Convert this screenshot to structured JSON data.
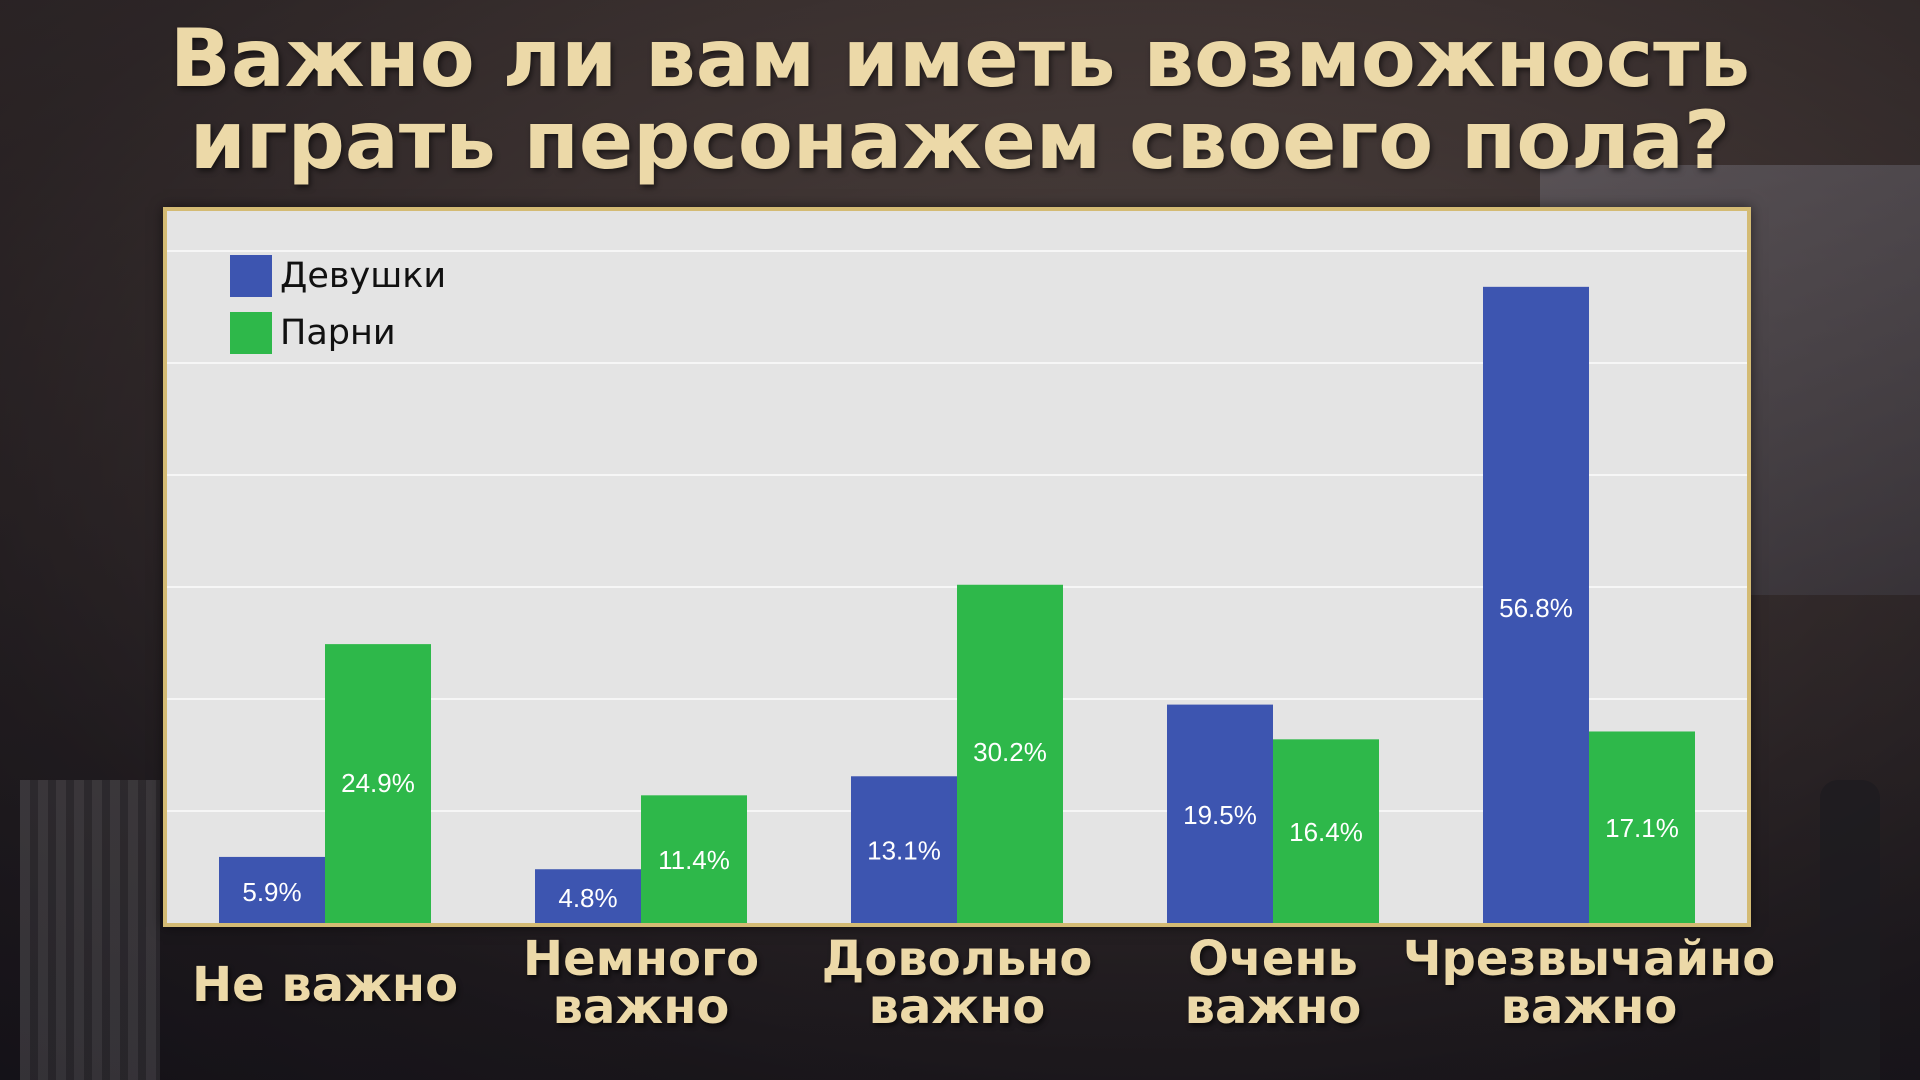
{
  "title_lines": [
    "Важно ли вам иметь возможность",
    "играть персонажем своего пола?"
  ],
  "colors": {
    "title": "#ecd9a8",
    "frame": "#d4bb74",
    "plot_bg": "#e4e4e4",
    "grid": "#f6f6f6"
  },
  "chart_data": {
    "type": "bar",
    "title": "Важно ли вам иметь возможность играть персонажем своего пола?",
    "categories": [
      [
        "Не важно"
      ],
      [
        "Немного",
        "важно"
      ],
      [
        "Довольно",
        "важно"
      ],
      [
        "Очень",
        "важно"
      ],
      [
        "Чрезвычайно",
        "важно"
      ]
    ],
    "series": [
      {
        "name": "Девушки",
        "color": "#3d55b0",
        "values": [
          5.9,
          4.8,
          13.1,
          19.5,
          56.8
        ],
        "labels": [
          "5.9%",
          "4.8%",
          "13.1%",
          "19.5%",
          "56.8%"
        ]
      },
      {
        "name": "Парни",
        "color": "#2eb84a",
        "values": [
          24.9,
          11.4,
          30.2,
          16.4,
          17.1
        ],
        "labels": [
          "24.9%",
          "11.4%",
          "30.2%",
          "16.4%",
          "17.1%"
        ]
      }
    ],
    "ylim": [
      0,
      60
    ],
    "grid": true,
    "legend_position": "top-left",
    "xlabel": "",
    "ylabel": ""
  }
}
